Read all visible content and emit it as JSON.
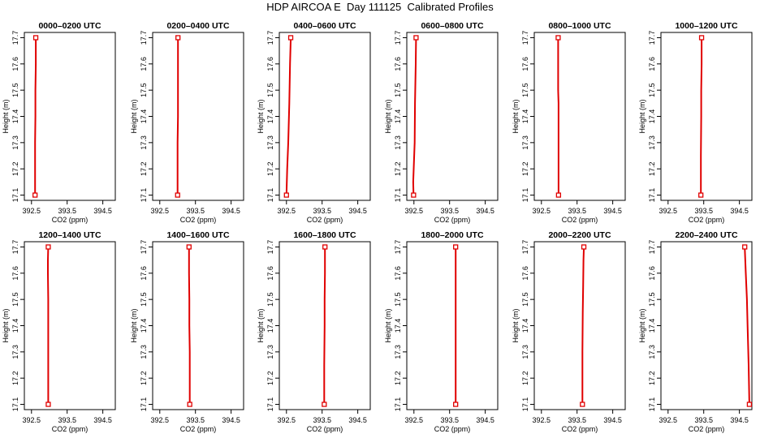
{
  "title": "HDP AIRCOA E  Day 111125  Calibrated Profiles",
  "chart_data": [
    {
      "type": "line",
      "title": "0000–0200 UTC",
      "xlabel": "CO2 (ppm)",
      "ylabel": "Height (m)",
      "xlim": [
        392.3,
        394.85
      ],
      "ylim": [
        17.08,
        17.72
      ],
      "xticks": [
        "392.5",
        "393.5",
        "394.5"
      ],
      "yticks": [
        "17.1",
        "17.2",
        "17.3",
        "17.4",
        "17.5",
        "17.6",
        "17.7"
      ],
      "series": [
        {
          "x": [
            392.6,
            392.6,
            392.61,
            392.61,
            392.62,
            392.62
          ],
          "y": [
            17.1,
            17.3,
            17.4,
            17.5,
            17.6,
            17.7
          ]
        }
      ],
      "end_x": [
        392.6,
        392.62
      ],
      "color": "#e00000"
    },
    {
      "type": "line",
      "title": "0200–0400 UTC",
      "xlabel": "CO2 (ppm)",
      "ylabel": "Height (m)",
      "xlim": [
        392.3,
        394.85
      ],
      "ylim": [
        17.08,
        17.72
      ],
      "xticks": [
        "392.5",
        "393.5",
        "394.5"
      ],
      "yticks": [
        "17.1",
        "17.2",
        "17.3",
        "17.4",
        "17.5",
        "17.6",
        "17.7"
      ],
      "series": [
        {
          "x": [
            393.0,
            393.0,
            393.01,
            393.01,
            393.01,
            393.01
          ],
          "y": [
            17.1,
            17.3,
            17.4,
            17.5,
            17.6,
            17.7
          ]
        }
      ],
      "end_x": [
        393.0,
        393.01
      ],
      "color": "#e00000"
    },
    {
      "type": "line",
      "title": "0400–0600 UTC",
      "xlabel": "CO2 (ppm)",
      "ylabel": "Height (m)",
      "xlim": [
        392.3,
        394.85
      ],
      "ylim": [
        17.08,
        17.72
      ],
      "xticks": [
        "392.5",
        "393.5",
        "394.5"
      ],
      "yticks": [
        "17.1",
        "17.2",
        "17.3",
        "17.4",
        "17.5",
        "17.6",
        "17.7"
      ],
      "series": [
        {
          "x": [
            392.5,
            392.52,
            392.55,
            392.58,
            392.6,
            392.62
          ],
          "y": [
            17.1,
            17.2,
            17.3,
            17.45,
            17.6,
            17.7
          ]
        }
      ],
      "end_x": [
        392.5,
        392.62
      ],
      "color": "#e00000"
    },
    {
      "type": "line",
      "title": "0600–0800 UTC",
      "xlabel": "CO2 (ppm)",
      "ylabel": "Height (m)",
      "xlim": [
        392.3,
        394.85
      ],
      "ylim": [
        17.08,
        17.72
      ],
      "xticks": [
        "392.5",
        "393.5",
        "394.5"
      ],
      "yticks": [
        "17.1",
        "17.2",
        "17.3",
        "17.4",
        "17.5",
        "17.6",
        "17.7"
      ],
      "series": [
        {
          "x": [
            392.49,
            392.48,
            392.52,
            392.53,
            392.55,
            392.56
          ],
          "y": [
            17.1,
            17.15,
            17.3,
            17.45,
            17.6,
            17.7
          ]
        }
      ],
      "end_x": [
        392.49,
        392.56
      ],
      "color": "#e00000"
    },
    {
      "type": "line",
      "title": "0800–1000 UTC",
      "xlabel": "CO2 (ppm)",
      "ylabel": "Height (m)",
      "xlim": [
        392.3,
        394.85
      ],
      "ylim": [
        17.08,
        17.72
      ],
      "xticks": [
        "392.5",
        "393.5",
        "394.5"
      ],
      "yticks": [
        "17.1",
        "17.2",
        "17.3",
        "17.4",
        "17.5",
        "17.6",
        "17.7"
      ],
      "series": [
        {
          "x": [
            392.98,
            392.98,
            392.98,
            392.97,
            392.97,
            392.97
          ],
          "y": [
            17.1,
            17.3,
            17.45,
            17.5,
            17.6,
            17.7
          ]
        }
      ],
      "end_x": [
        392.98,
        392.97
      ],
      "color": "#e00000"
    },
    {
      "type": "line",
      "title": "1000–1200 UTC",
      "xlabel": "CO2 (ppm)",
      "ylabel": "Height (m)",
      "xlim": [
        392.3,
        394.85
      ],
      "ylim": [
        17.08,
        17.72
      ],
      "xticks": [
        "392.5",
        "393.5",
        "394.5"
      ],
      "yticks": [
        "17.1",
        "17.2",
        "17.3",
        "17.4",
        "17.5",
        "17.6",
        "17.7"
      ],
      "series": [
        {
          "x": [
            393.42,
            393.42,
            393.43,
            393.43,
            393.44,
            393.44
          ],
          "y": [
            17.1,
            17.25,
            17.4,
            17.5,
            17.6,
            17.7
          ]
        }
      ],
      "end_x": [
        393.42,
        393.44
      ],
      "color": "#e00000"
    },
    {
      "type": "line",
      "title": "1200–1400 UTC",
      "xlabel": "CO2 (ppm)",
      "ylabel": "Height (m)",
      "xlim": [
        392.3,
        394.85
      ],
      "ylim": [
        17.08,
        17.72
      ],
      "xticks": [
        "392.5",
        "393.5",
        "394.5"
      ],
      "yticks": [
        "17.1",
        "17.2",
        "17.3",
        "17.4",
        "17.5",
        "17.6",
        "17.7"
      ],
      "series": [
        {
          "x": [
            392.97,
            392.97,
            392.97,
            392.96,
            392.96,
            392.97
          ],
          "y": [
            17.1,
            17.3,
            17.5,
            17.6,
            17.65,
            17.7
          ]
        }
      ],
      "end_x": [
        392.97,
        392.97
      ],
      "color": "#e00000"
    },
    {
      "type": "line",
      "title": "1400–1600 UTC",
      "xlabel": "CO2 (ppm)",
      "ylabel": "Height (m)",
      "xlim": [
        392.3,
        394.85
      ],
      "ylim": [
        17.08,
        17.72
      ],
      "xticks": [
        "392.5",
        "393.5",
        "394.5"
      ],
      "yticks": [
        "17.1",
        "17.2",
        "17.3",
        "17.4",
        "17.5",
        "17.6",
        "17.7"
      ],
      "series": [
        {
          "x": [
            393.34,
            393.34,
            393.33,
            393.33,
            393.32,
            393.32
          ],
          "y": [
            17.1,
            17.3,
            17.4,
            17.5,
            17.6,
            17.7
          ]
        }
      ],
      "end_x": [
        393.34,
        393.32
      ],
      "color": "#e00000"
    },
    {
      "type": "line",
      "title": "1600–1800 UTC",
      "xlabel": "CO2 (ppm)",
      "ylabel": "Height (m)",
      "xlim": [
        392.3,
        394.85
      ],
      "ylim": [
        17.08,
        17.72
      ],
      "xticks": [
        "392.5",
        "393.5",
        "394.5"
      ],
      "yticks": [
        "17.1",
        "17.2",
        "17.3",
        "17.4",
        "17.5",
        "17.6",
        "17.7"
      ],
      "series": [
        {
          "x": [
            393.56,
            393.56,
            393.57,
            393.57,
            393.58,
            393.58
          ],
          "y": [
            17.1,
            17.25,
            17.4,
            17.5,
            17.6,
            17.7
          ]
        }
      ],
      "end_x": [
        393.56,
        393.58
      ],
      "color": "#e00000"
    },
    {
      "type": "line",
      "title": "1800–2000 UTC",
      "xlabel": "CO2 (ppm)",
      "ylabel": "Height (m)",
      "xlim": [
        392.3,
        394.85
      ],
      "ylim": [
        17.08,
        17.72
      ],
      "xticks": [
        "392.5",
        "393.5",
        "394.5"
      ],
      "yticks": [
        "17.1",
        "17.2",
        "17.3",
        "17.4",
        "17.5",
        "17.6",
        "17.7"
      ],
      "series": [
        {
          "x": [
            393.67,
            393.67,
            393.67,
            393.67,
            393.67,
            393.67
          ],
          "y": [
            17.1,
            17.3,
            17.4,
            17.5,
            17.6,
            17.7
          ]
        }
      ],
      "end_x": [
        393.67,
        393.67
      ],
      "color": "#e00000"
    },
    {
      "type": "line",
      "title": "2000–2200 UTC",
      "xlabel": "CO2 (ppm)",
      "ylabel": "Height (m)",
      "xlim": [
        392.3,
        394.85
      ],
      "ylim": [
        17.08,
        17.72
      ],
      "xticks": [
        "392.5",
        "393.5",
        "394.5"
      ],
      "yticks": [
        "17.1",
        "17.2",
        "17.3",
        "17.4",
        "17.5",
        "17.6",
        "17.7"
      ],
      "series": [
        {
          "x": [
            393.65,
            393.65,
            393.66,
            393.67,
            393.68,
            393.69
          ],
          "y": [
            17.1,
            17.3,
            17.45,
            17.55,
            17.65,
            17.7
          ]
        }
      ],
      "end_x": [
        393.65,
        393.69
      ],
      "color": "#e00000"
    },
    {
      "type": "line",
      "title": "2200–2400 UTC",
      "xlabel": "CO2 (ppm)",
      "ylabel": "Height (m)",
      "xlim": [
        392.3,
        394.85
      ],
      "ylim": [
        17.08,
        17.72
      ],
      "xticks": [
        "392.5",
        "393.5",
        "394.5"
      ],
      "yticks": [
        "17.1",
        "17.2",
        "17.3",
        "17.4",
        "17.5",
        "17.6",
        "17.7"
      ],
      "series": [
        {
          "x": [
            394.78,
            394.76,
            394.73,
            394.71,
            394.68,
            394.65
          ],
          "y": [
            17.1,
            17.25,
            17.4,
            17.5,
            17.6,
            17.7
          ]
        }
      ],
      "end_x": [
        394.78,
        394.65
      ],
      "color": "#e00000"
    }
  ]
}
